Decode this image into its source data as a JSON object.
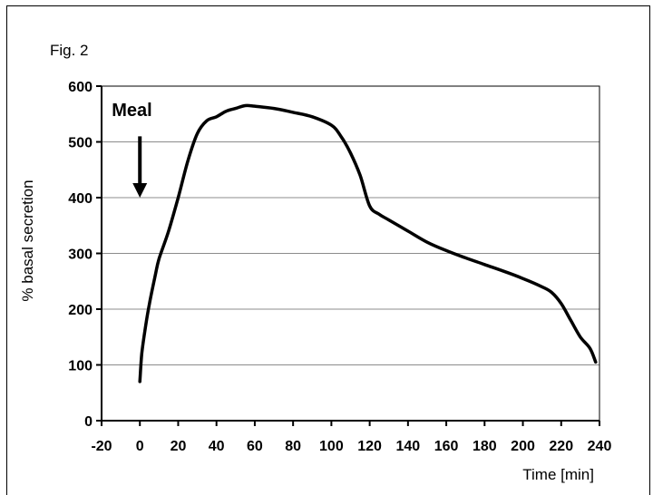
{
  "figure_label": "Fig. 2",
  "chart_data": {
    "type": "line",
    "title": "",
    "xlabel": "Time [min]",
    "ylabel": "% basal secretion",
    "xlim": [
      -20,
      240
    ],
    "ylim": [
      0,
      600
    ],
    "x_ticks": [
      -20,
      0,
      20,
      40,
      60,
      80,
      100,
      120,
      140,
      160,
      180,
      200,
      220,
      240
    ],
    "y_ticks": [
      0,
      100,
      200,
      300,
      400,
      500,
      600
    ],
    "grid": "horizontal",
    "legend": "none",
    "annotation": {
      "text": "Meal",
      "x": 0,
      "arrow_from_y": 510,
      "arrow_to_y": 400
    },
    "series": [
      {
        "color": "#000000",
        "x": [
          0,
          1,
          3,
          5,
          8,
          10,
          15,
          20,
          25,
          30,
          35,
          40,
          45,
          50,
          55,
          60,
          70,
          80,
          90,
          100,
          105,
          110,
          115,
          120,
          125,
          130,
          140,
          150,
          160,
          170,
          180,
          190,
          200,
          210,
          215,
          220,
          225,
          230,
          235,
          238
        ],
        "y": [
          70,
          120,
          170,
          210,
          260,
          290,
          340,
          400,
          465,
          515,
          538,
          545,
          555,
          560,
          565,
          564,
          560,
          553,
          545,
          530,
          510,
          480,
          440,
          385,
          370,
          360,
          340,
          320,
          305,
          292,
          280,
          268,
          255,
          240,
          230,
          210,
          180,
          150,
          130,
          105
        ]
      }
    ]
  }
}
